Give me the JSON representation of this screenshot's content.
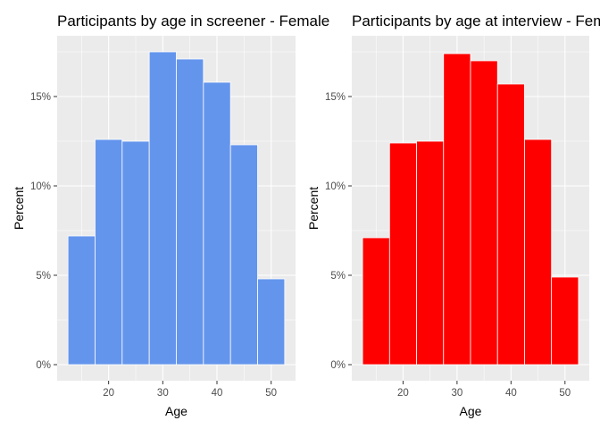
{
  "chart_data": [
    {
      "type": "bar",
      "title": "Participants by age in screener  - Female",
      "xlabel": "Age",
      "ylabel": "Percent",
      "bar_color": "#6495ED",
      "bins": [
        {
          "start": 12.5,
          "end": 17.5,
          "value": 7.2
        },
        {
          "start": 17.5,
          "end": 22.5,
          "value": 12.6
        },
        {
          "start": 22.5,
          "end": 27.5,
          "value": 12.5
        },
        {
          "start": 27.5,
          "end": 32.5,
          "value": 17.5
        },
        {
          "start": 32.5,
          "end": 37.5,
          "value": 17.1
        },
        {
          "start": 37.5,
          "end": 42.5,
          "value": 15.8
        },
        {
          "start": 42.5,
          "end": 47.5,
          "value": 12.3
        },
        {
          "start": 47.5,
          "end": 52.5,
          "value": 4.8
        }
      ],
      "xlim": [
        10.5,
        54.5
      ],
      "ylim": [
        -0.9,
        18.4
      ],
      "x_ticks": [
        20,
        30,
        40,
        50
      ],
      "x_tick_labels": [
        "20",
        "30",
        "40",
        "50"
      ],
      "y_ticks": [
        0,
        5,
        10,
        15
      ],
      "y_tick_labels": [
        "0%",
        "5%",
        "10%",
        "15%"
      ],
      "grid": true,
      "legend": "none"
    },
    {
      "type": "bar",
      "title": "Participants by age at interview - Female",
      "xlabel": "Age",
      "ylabel": "Percent",
      "bar_color": "#FF0000",
      "bins": [
        {
          "start": 12.5,
          "end": 17.5,
          "value": 7.1
        },
        {
          "start": 17.5,
          "end": 22.5,
          "value": 12.4
        },
        {
          "start": 22.5,
          "end": 27.5,
          "value": 12.5
        },
        {
          "start": 27.5,
          "end": 32.5,
          "value": 17.4
        },
        {
          "start": 32.5,
          "end": 37.5,
          "value": 17.0
        },
        {
          "start": 37.5,
          "end": 42.5,
          "value": 15.7
        },
        {
          "start": 42.5,
          "end": 47.5,
          "value": 12.6
        },
        {
          "start": 47.5,
          "end": 52.5,
          "value": 4.9
        }
      ],
      "xlim": [
        10.5,
        54.5
      ],
      "ylim": [
        -0.9,
        18.4
      ],
      "x_ticks": [
        20,
        30,
        40,
        50
      ],
      "x_tick_labels": [
        "20",
        "30",
        "40",
        "50"
      ],
      "y_ticks": [
        0,
        5,
        10,
        15
      ],
      "y_tick_labels": [
        "0%",
        "5%",
        "10%",
        "15%"
      ],
      "grid": true,
      "legend": "none"
    }
  ]
}
